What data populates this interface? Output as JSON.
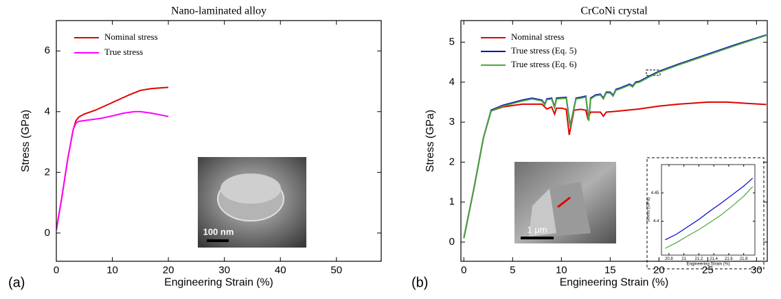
{
  "chart_data": [
    {
      "type": "line",
      "title": "Nano-laminated alloy",
      "panel_label": "(a)",
      "x_label": "Engineering Strain (%)",
      "y_label": "Stress (GPa)",
      "xlim": [
        0,
        58
      ],
      "xticks": [
        0,
        10,
        20,
        30,
        40,
        50
      ],
      "ylim": [
        -0.93,
        7
      ],
      "yticks": [
        0,
        2,
        4,
        6
      ],
      "legend": "upper left",
      "scale_bar": "100 nm",
      "series": [
        {
          "name": "Nominal stress",
          "color": "#e00000",
          "x": [
            0,
            1,
            2,
            3,
            3.5,
            4,
            5,
            7,
            10,
            13,
            15,
            17,
            20
          ],
          "values": [
            0.1,
            1.2,
            2.4,
            3.4,
            3.7,
            3.82,
            3.92,
            4.05,
            4.3,
            4.55,
            4.7,
            4.76,
            4.8
          ]
        },
        {
          "name": "True stress",
          "color": "#ff00ff",
          "x": [
            0,
            1,
            2,
            3,
            3.5,
            4,
            6,
            8,
            10,
            12,
            14,
            15,
            17,
            20
          ],
          "values": [
            0.1,
            1.2,
            2.4,
            3.4,
            3.62,
            3.68,
            3.73,
            3.78,
            3.86,
            3.95,
            4.0,
            4.0,
            3.95,
            3.84
          ]
        }
      ]
    },
    {
      "type": "line",
      "title": "CrCoNi crystal",
      "panel_label": "(b)",
      "x_label": "Engineering Strain (%)",
      "y_label": "Stress (GPa)",
      "xlim": [
        -0.3,
        31.1
      ],
      "xticks": [
        0,
        5,
        10,
        15,
        20,
        25,
        30
      ],
      "ylim": [
        -0.48,
        5.54
      ],
      "yticks": [
        0,
        1,
        2,
        3,
        4,
        5
      ],
      "legend": "upper left",
      "scale_bar": "1 μm",
      "series": [
        {
          "name": "Nominal stress",
          "color": "#e00000",
          "x": [
            0,
            1,
            2,
            2.8,
            4,
            6,
            8,
            8.5,
            9,
            9.3,
            9.5,
            10,
            10.5,
            10.8,
            11.3,
            12,
            12.5,
            12.7,
            13,
            14,
            14.3,
            14.6,
            16,
            18,
            20,
            22,
            25,
            27,
            29,
            31
          ],
          "values": [
            0.1,
            1.3,
            2.6,
            3.28,
            3.38,
            3.45,
            3.45,
            3.33,
            3.38,
            3.2,
            3.35,
            3.35,
            3.32,
            2.68,
            3.3,
            3.32,
            3.3,
            3.1,
            3.25,
            3.25,
            3.15,
            3.25,
            3.28,
            3.33,
            3.4,
            3.45,
            3.5,
            3.5,
            3.47,
            3.44
          ]
        },
        {
          "name": "True stress (Eq. 5)",
          "color": "#0000d0",
          "x": [
            0,
            1,
            2,
            2.8,
            4,
            6,
            7,
            8,
            8.3,
            8.5,
            9,
            9.3,
            9.5,
            10.5,
            10.9,
            11.5,
            12,
            12.5,
            12.8,
            13,
            13.5,
            14,
            14.3,
            14.6,
            15,
            15.3,
            15.6,
            16,
            17,
            17.3,
            17.6,
            18,
            19,
            20,
            22,
            25,
            28,
            31
          ],
          "values": [
            0.1,
            1.3,
            2.6,
            3.3,
            3.42,
            3.55,
            3.6,
            3.55,
            3.45,
            3.58,
            3.6,
            3.38,
            3.6,
            3.62,
            2.9,
            3.6,
            3.62,
            3.65,
            3.05,
            3.6,
            3.68,
            3.7,
            3.6,
            3.75,
            3.75,
            3.67,
            3.82,
            3.85,
            3.95,
            3.9,
            4.0,
            4.02,
            4.15,
            4.27,
            4.45,
            4.7,
            4.95,
            5.18
          ]
        },
        {
          "name": "True stress (Eq. 6)",
          "color": "#4ca63a",
          "x": [
            0,
            1,
            2,
            2.8,
            4,
            6,
            7,
            8,
            8.3,
            8.5,
            9,
            9.3,
            9.5,
            10.5,
            10.9,
            11.5,
            12,
            12.5,
            12.8,
            13,
            13.5,
            14,
            14.3,
            14.6,
            15,
            15.3,
            15.6,
            16,
            17,
            17.3,
            17.6,
            18,
            19,
            20,
            22,
            25,
            28,
            31
          ],
          "values": [
            0.1,
            1.3,
            2.6,
            3.28,
            3.4,
            3.53,
            3.58,
            3.53,
            3.43,
            3.56,
            3.58,
            3.36,
            3.58,
            3.6,
            2.88,
            3.58,
            3.6,
            3.63,
            3.03,
            3.58,
            3.66,
            3.68,
            3.58,
            3.73,
            3.73,
            3.65,
            3.8,
            3.83,
            3.93,
            3.88,
            3.98,
            4.0,
            4.13,
            4.25,
            4.43,
            4.68,
            4.93,
            5.17
          ]
        }
      ]
    },
    {
      "type": "line",
      "x_label": "Engineering Strain (%)",
      "y_label": "Stress (GPa)",
      "xlim": [
        20.7,
        21.95
      ],
      "xticks": [
        20.8,
        21,
        21.2,
        21.4,
        21.6,
        21.8
      ],
      "ylim": [
        4.34,
        4.5
      ],
      "yticks": [
        4.4,
        4.45
      ],
      "series": [
        {
          "color": "#0000d0",
          "x": [
            20.75,
            20.9,
            21.05,
            21.2,
            21.35,
            21.5,
            21.65,
            21.8,
            21.92
          ],
          "values": [
            4.367,
            4.377,
            4.39,
            4.403,
            4.418,
            4.432,
            4.447,
            4.462,
            4.476
          ]
        },
        {
          "color": "#4ca63a",
          "x": [
            20.75,
            20.9,
            21.05,
            21.2,
            21.35,
            21.5,
            21.65,
            21.8,
            21.92
          ],
          "values": [
            4.352,
            4.362,
            4.374,
            4.385,
            4.398,
            4.411,
            4.427,
            4.444,
            4.461
          ]
        }
      ]
    }
  ]
}
